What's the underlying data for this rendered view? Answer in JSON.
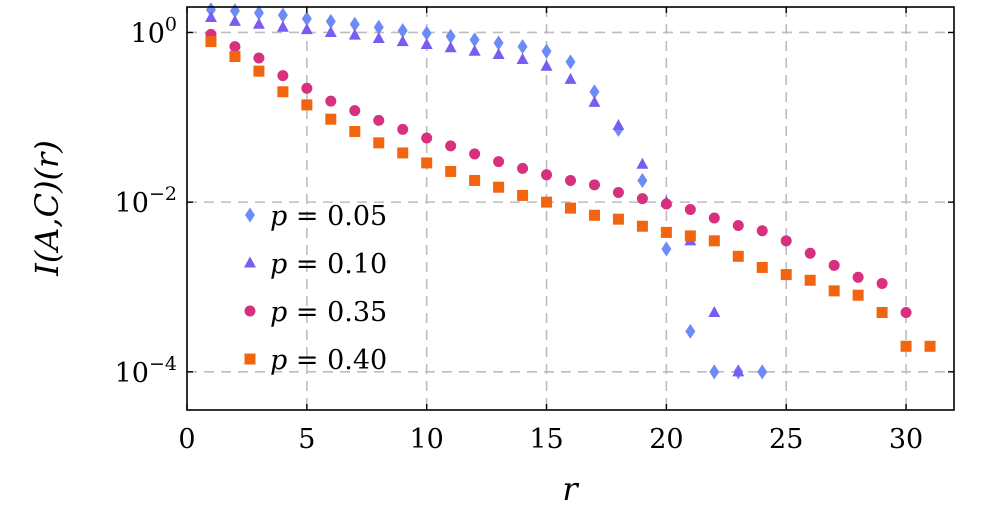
{
  "chart_data": {
    "type": "scatter",
    "xlabel": "r",
    "ylabel": "I(A,C)(r)",
    "xlim": [
      0,
      32
    ],
    "ylim_log10": [
      -4.45,
      0.3
    ],
    "yscale": "log",
    "grid": true,
    "legend_position": "left-center",
    "x_ticks": [
      0,
      5,
      10,
      15,
      20,
      25,
      30
    ],
    "y_ticks": [
      {
        "exp": 0,
        "base": "10",
        "sup": "0"
      },
      {
        "exp": -2,
        "base": "10",
        "sup": "−2"
      },
      {
        "exp": -4,
        "base": "10",
        "sup": "−4"
      }
    ],
    "series": [
      {
        "name": "p = 0.05",
        "label_var": "p",
        "label_val": "= 0.05",
        "marker": "diamond",
        "color": "#6b8cf5",
        "x": [
          1,
          2,
          3,
          4,
          5,
          6,
          7,
          8,
          9,
          10,
          11,
          12,
          13,
          14,
          15,
          16,
          17,
          18,
          19,
          20,
          21,
          22,
          23,
          24
        ],
        "y": [
          1.85,
          1.8,
          1.7,
          1.6,
          1.45,
          1.35,
          1.25,
          1.15,
          1.05,
          0.98,
          0.9,
          0.82,
          0.75,
          0.68,
          0.6,
          0.45,
          0.2,
          0.072,
          0.018,
          0.0028,
          0.0003,
          0.0001,
          0.0001,
          0.0001
        ]
      },
      {
        "name": "p = 0.10",
        "label_var": "p",
        "label_val": "= 0.10",
        "marker": "triangle",
        "color": "#7b5cf0",
        "x": [
          1,
          2,
          3,
          4,
          5,
          6,
          7,
          8,
          9,
          10,
          11,
          12,
          13,
          14,
          15,
          16,
          17,
          18,
          19,
          20,
          21,
          22,
          23
        ],
        "y": [
          1.5,
          1.35,
          1.25,
          1.15,
          1.08,
          1.0,
          0.93,
          0.85,
          0.78,
          0.72,
          0.66,
          0.6,
          0.55,
          0.48,
          0.4,
          0.28,
          0.15,
          0.08,
          0.028,
          0.01,
          0.0035,
          0.0005,
          0.0001
        ]
      },
      {
        "name": "p = 0.35",
        "label_var": "p",
        "label_val": "= 0.35",
        "marker": "circle",
        "color": "#d6307e",
        "x": [
          1,
          2,
          3,
          4,
          5,
          6,
          7,
          8,
          9,
          10,
          11,
          12,
          13,
          14,
          15,
          16,
          17,
          18,
          19,
          20,
          21,
          22,
          23,
          24,
          25,
          26,
          27,
          28,
          29,
          30
        ],
        "y": [
          0.95,
          0.68,
          0.5,
          0.31,
          0.22,
          0.155,
          0.12,
          0.092,
          0.072,
          0.057,
          0.046,
          0.037,
          0.03,
          0.025,
          0.021,
          0.018,
          0.016,
          0.013,
          0.011,
          0.0095,
          0.0082,
          0.0065,
          0.0053,
          0.0046,
          0.0035,
          0.0025,
          0.0018,
          0.0013,
          0.0011,
          0.0005
        ]
      },
      {
        "name": "p = 0.40",
        "label_var": "p",
        "label_val": "= 0.40",
        "marker": "square",
        "color": "#f2640f",
        "x": [
          1,
          2,
          3,
          4,
          5,
          6,
          7,
          8,
          9,
          10,
          11,
          12,
          13,
          14,
          15,
          16,
          17,
          18,
          19,
          20,
          21,
          22,
          23,
          24,
          25,
          26,
          27,
          28,
          29,
          30,
          31
        ],
        "y": [
          0.78,
          0.52,
          0.35,
          0.2,
          0.14,
          0.095,
          0.068,
          0.05,
          0.038,
          0.029,
          0.023,
          0.018,
          0.015,
          0.012,
          0.01,
          0.0085,
          0.007,
          0.0063,
          0.0052,
          0.0044,
          0.004,
          0.0035,
          0.0023,
          0.0017,
          0.0014,
          0.0012,
          0.0009,
          0.0008,
          0.0005,
          0.0002,
          0.0002
        ]
      }
    ]
  }
}
